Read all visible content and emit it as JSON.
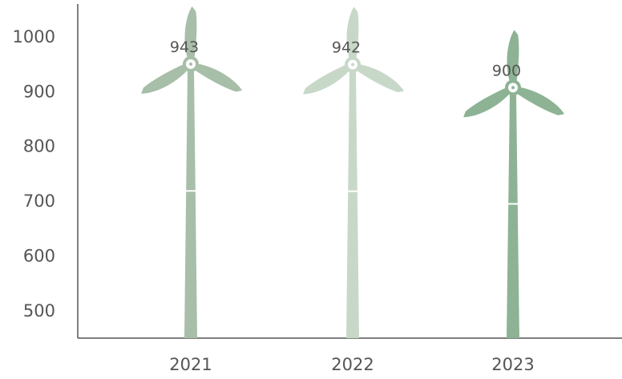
{
  "chart_data": {
    "type": "bar",
    "title": "",
    "xlabel": "",
    "ylabel": "",
    "categories": [
      "2021",
      "2022",
      "2023"
    ],
    "values": [
      943,
      942,
      900
    ],
    "value_labels": [
      "943",
      "942",
      "900"
    ],
    "ylim": [
      450,
      1060
    ],
    "yticks": [
      500,
      600,
      700,
      800,
      900,
      1000
    ],
    "ytick_labels": [
      "500",
      "600",
      "700",
      "800",
      "900",
      "1000"
    ],
    "mark_style": "wind-turbine",
    "colors": [
      "#a7bea8",
      "#c7d8c8",
      "#8db394"
    ],
    "grid": false,
    "legend": "none"
  }
}
